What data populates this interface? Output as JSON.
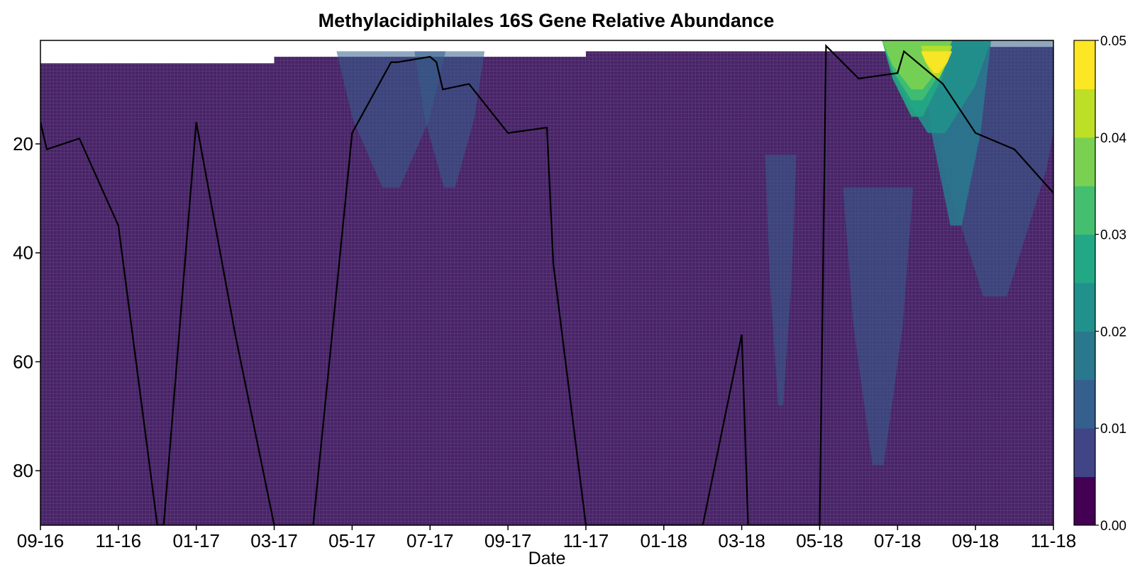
{
  "chart_data": {
    "type": "heatmap",
    "title": "Methylacidiphilales 16S Gene Relative Abundance",
    "xlabel": "Date",
    "ylabel": "",
    "x_ticks": [
      "09-16",
      "11-16",
      "01-17",
      "03-17",
      "05-17",
      "07-17",
      "09-17",
      "11-17",
      "01-18",
      "03-18",
      "05-18",
      "07-18",
      "09-18",
      "11-18"
    ],
    "y_ticks": [
      20,
      40,
      60,
      80
    ],
    "ylim": [
      90,
      1
    ],
    "y_inverted": true,
    "colorbar": {
      "ticks": [
        "0.00",
        "0.01",
        "0.02",
        "0.03",
        "0.04",
        "0.05"
      ],
      "levels": [
        0,
        0.005,
        0.01,
        0.015,
        0.02,
        0.025,
        0.03,
        0.035,
        0.04,
        0.045,
        0.05
      ],
      "colors": [
        "#440154",
        "#482475",
        "#414487",
        "#355f8d",
        "#2a788e",
        "#21918c",
        "#22a884",
        "#44bf70",
        "#7ad151",
        "#bddf26",
        "#fde725"
      ]
    },
    "background_color": "#482466",
    "grid": false,
    "line_series": {
      "name": "",
      "color": "#000000",
      "points": [
        [
          "09-16",
          16
        ],
        [
          "09-16",
          21
        ],
        [
          "10-16",
          19
        ],
        [
          "11-16",
          35
        ],
        [
          "12-16",
          90
        ],
        [
          "12-16",
          90
        ],
        [
          "01-17",
          16
        ],
        [
          "02-17",
          55
        ],
        [
          "03-17",
          90
        ],
        [
          "04-17",
          90
        ],
        [
          "05-17",
          18
        ],
        [
          "06-17",
          5
        ],
        [
          "06-17",
          5
        ],
        [
          "07-17",
          4
        ],
        [
          "07-17",
          5
        ],
        [
          "07-17",
          10
        ],
        [
          "08-17",
          9
        ],
        [
          "09-17",
          18
        ],
        [
          "10-17",
          17
        ],
        [
          "10-17",
          42
        ],
        [
          "11-17",
          90
        ],
        [
          "02-18",
          90
        ],
        [
          "03-18",
          55
        ],
        [
          "03-18",
          90
        ],
        [
          "05-18",
          90
        ],
        [
          "05-18",
          2
        ],
        [
          "06-18",
          8
        ],
        [
          "07-18",
          7
        ],
        [
          "07-18",
          3
        ],
        [
          "08-18",
          8
        ],
        [
          "08-18",
          9
        ],
        [
          "09-18",
          18
        ],
        [
          "10-18",
          21
        ],
        [
          "11-18",
          29
        ]
      ]
    },
    "patches": [
      {
        "level": 0.01,
        "dates": [
          "05-17",
          "06-17",
          "07-17"
        ],
        "depth_range": [
          3,
          28
        ]
      },
      {
        "level": 0.01,
        "dates": [
          "07-17",
          "08-17"
        ],
        "depth_range": [
          3,
          28
        ]
      },
      {
        "level": 0.01,
        "dates": [
          "04-18"
        ],
        "depth_range": [
          22,
          68
        ]
      },
      {
        "level": 0.01,
        "dates": [
          "06-18",
          "07-18"
        ],
        "depth_range": [
          28,
          79
        ]
      },
      {
        "level": 0.01,
        "dates": [
          "08-18",
          "09-18",
          "10-18",
          "11-18"
        ],
        "depth_range": [
          1,
          48
        ]
      },
      {
        "level": 0.015,
        "dates": [
          "08-18",
          "09-18"
        ],
        "depth_range": [
          1,
          35
        ]
      },
      {
        "level": 0.02,
        "dates": [
          "07-18",
          "08-18",
          "09-18"
        ],
        "depth_range": [
          1,
          18
        ]
      },
      {
        "level": 0.025,
        "dates": [
          "07-18",
          "08-18"
        ],
        "depth_range": [
          1,
          15
        ]
      },
      {
        "level": 0.03,
        "dates": [
          "07-18",
          "08-18"
        ],
        "depth_range": [
          1,
          12
        ]
      },
      {
        "level": 0.035,
        "dates": [
          "07-18",
          "08-18"
        ],
        "depth_range": [
          1,
          10
        ]
      },
      {
        "level": 0.04,
        "dates": [
          "08-18"
        ],
        "depth_range": [
          2,
          8
        ]
      },
      {
        "level": 0.045,
        "dates": [
          "08-18"
        ],
        "depth_range": [
          3,
          7
        ]
      }
    ]
  }
}
